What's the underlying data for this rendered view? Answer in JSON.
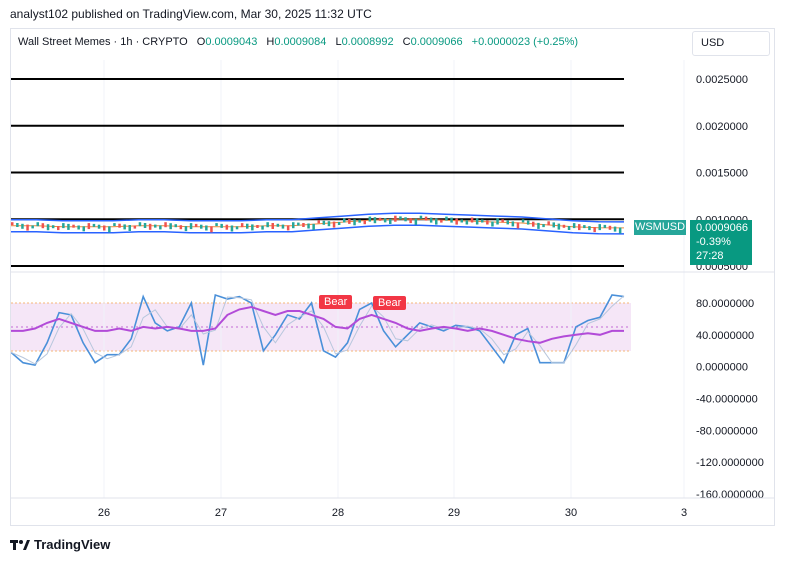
{
  "header": {
    "published_line": "analyst102 published on TradingView.com, Mar 30, 2025 11:32 UTC"
  },
  "legend": {
    "symbol": "Wall Street Memes · 1h · CRYPTO",
    "o_label": "O",
    "o_value": "0.0009043",
    "h_label": "H",
    "h_value": "0.0009084",
    "l_label": "L",
    "l_value": "0.0008992",
    "c_label": "C",
    "c_value": "0.0009066",
    "change": "+0.0000023 (+0.25%)"
  },
  "currency_button": "USD",
  "price_tag": {
    "symbol": "WSMUSD",
    "price": "0.0009066",
    "change": "-0.39%",
    "countdown": "27:28"
  },
  "bear_labels": [
    "Bear",
    "Bear"
  ],
  "footer": {
    "brand": "TradingView"
  },
  "colors": {
    "up": "#26a69a",
    "down": "#ef5350",
    "bollinger": "#2962ff",
    "stoch_k": "#4a90d9",
    "stoch_d": "#b24bd8",
    "bear": "#f23645",
    "tag": "#089981"
  },
  "chart_data": [
    {
      "type": "line",
      "title": "",
      "x_ticks": [
        "26",
        "27",
        "28",
        "29",
        "30",
        "3"
      ],
      "y_ticks": [
        "0.0025000",
        "0.0020000",
        "0.0015000",
        "0.0010000",
        "0.0005000"
      ],
      "ylim": [
        0.0004,
        0.0028
      ],
      "horizontal_levels": [
        0.0025,
        0.002,
        0.0015,
        0.001,
        0.0005
      ],
      "series": [
        {
          "name": "",
          "values": [
            0.00093,
            0.00093,
            0.00092,
            0.00092,
            0.00092,
            0.00093,
            0.00093,
            0.00092,
            0.00092,
            0.00092,
            0.00093,
            0.00093,
            0.00095,
            0.00097,
            0.00099,
            0.001,
            0.001,
            0.00099,
            0.00098,
            0.00097,
            0.00096,
            0.00094,
            0.00092,
            0.00091,
            0.000907
          ]
        }
      ]
    },
    {
      "type": "line",
      "title": "",
      "y_ticks": [
        "80.0000000",
        "40.0000000",
        "0.0000000",
        "-40.0000000",
        "-80.0000000",
        "-120.0000000",
        "-160.0000000"
      ],
      "ylim": [
        -165,
        105
      ],
      "series": [
        {
          "name": "",
          "values": [
            18,
            5,
            2,
            30,
            68,
            65,
            30,
            5,
            15,
            15,
            35,
            88,
            55,
            45,
            50,
            80,
            2,
            90,
            85,
            88,
            80,
            20,
            40,
            65,
            60,
            80,
            20,
            12,
            30,
            72,
            80,
            45,
            25,
            40,
            55,
            50,
            45,
            52,
            50,
            45,
            25,
            5,
            40,
            48,
            5,
            5,
            5,
            50,
            58,
            62,
            90,
            88
          ]
        },
        {
          "name": "",
          "values": [
            45,
            45,
            48,
            55,
            60,
            55,
            50,
            45,
            45,
            48,
            45,
            50,
            48,
            50,
            48,
            45,
            45,
            48,
            65,
            72,
            75,
            70,
            65,
            70,
            70,
            65,
            60,
            50,
            48,
            60,
            65,
            60,
            55,
            48,
            45,
            48,
            50,
            48,
            45,
            48,
            45,
            40,
            35,
            32,
            30,
            35,
            38,
            40,
            42,
            40,
            45,
            45
          ]
        }
      ]
    }
  ]
}
